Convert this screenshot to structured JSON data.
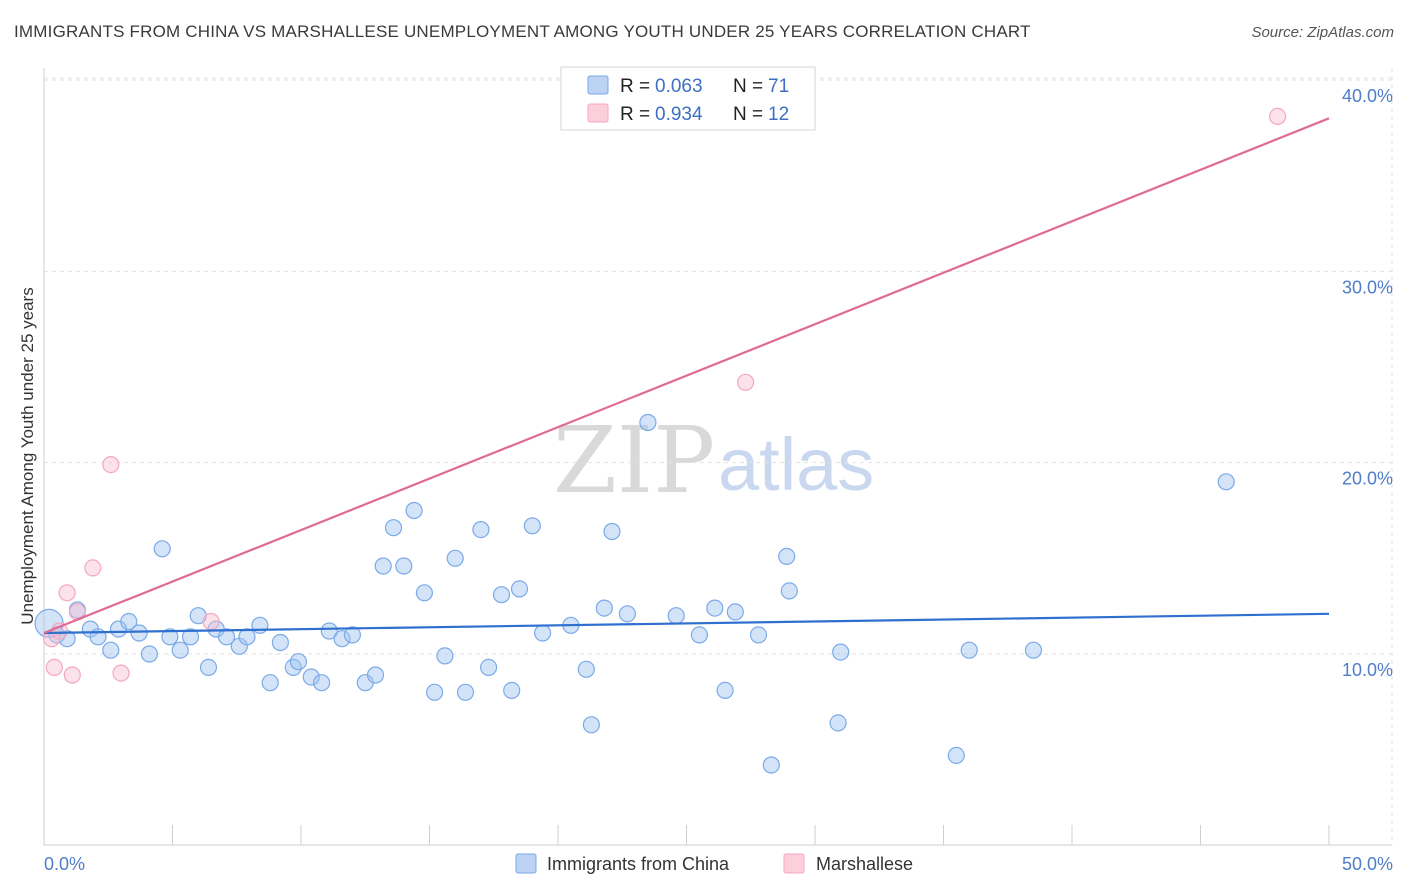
{
  "header": {
    "title": "IMMIGRANTS FROM CHINA VS MARSHALLESE UNEMPLOYMENT AMONG YOUTH UNDER 25 YEARS CORRELATION CHART",
    "source": "Source: ZipAtlas.com"
  },
  "watermark": {
    "zip": "ZIP",
    "atlas": "atlas"
  },
  "legend_top": {
    "rows": [
      {
        "r_label": "R = ",
        "r_value": "0.063",
        "n_label": "N = ",
        "n_value": "71"
      },
      {
        "r_label": "R = ",
        "r_value": "0.934",
        "n_label": "N = ",
        "n_value": "12"
      }
    ]
  },
  "chart_data": {
    "type": "scatter",
    "title": "IMMIGRANTS FROM CHINA VS MARSHALLESE UNEMPLOYMENT AMONG YOUTH UNDER 25 YEARS CORRELATION CHART",
    "xlabel": "",
    "ylabel": "Unemployment Among Youth under 25 years",
    "xlim": [
      0,
      50
    ],
    "ylim": [
      2,
      42
    ],
    "x_tick_labels": [
      "0.0%",
      "50.0%"
    ],
    "y_ticks": [
      10,
      20,
      30,
      40
    ],
    "y_tick_labels": [
      "10.0%",
      "20.0%",
      "30.0%",
      "40.0%"
    ],
    "grid": true,
    "legend_placement": "top-center and bottom",
    "colors": {
      "china": "#7aaae8",
      "china_line": "#2f6fd0",
      "marshallese": "#f4a7bd",
      "marshallese_line": "#e06a93",
      "tick_text": "#4f7dc9"
    },
    "series": [
      {
        "name": "Immigrants from China",
        "color": "#7aaae8",
        "trend": {
          "x": [
            0,
            50
          ],
          "y": [
            11.1,
            12.1
          ]
        },
        "points": [
          [
            0.2,
            11.6
          ],
          [
            0.5,
            11.0
          ],
          [
            0.9,
            10.8
          ],
          [
            1.3,
            12.3
          ],
          [
            1.8,
            11.3
          ],
          [
            2.1,
            10.9
          ],
          [
            2.6,
            10.2
          ],
          [
            2.9,
            11.3
          ],
          [
            3.3,
            11.7
          ],
          [
            3.7,
            11.1
          ],
          [
            4.1,
            10.0
          ],
          [
            4.6,
            15.5
          ],
          [
            4.9,
            10.9
          ],
          [
            5.3,
            10.2
          ],
          [
            5.7,
            10.9
          ],
          [
            6.0,
            12.0
          ],
          [
            6.4,
            9.3
          ],
          [
            6.7,
            11.3
          ],
          [
            7.1,
            10.9
          ],
          [
            7.6,
            10.4
          ],
          [
            7.9,
            10.9
          ],
          [
            8.4,
            11.5
          ],
          [
            8.8,
            8.5
          ],
          [
            9.2,
            10.6
          ],
          [
            9.7,
            9.3
          ],
          [
            9.9,
            9.6
          ],
          [
            10.4,
            8.8
          ],
          [
            10.8,
            8.5
          ],
          [
            11.1,
            11.2
          ],
          [
            11.6,
            10.8
          ],
          [
            12.0,
            11.0
          ],
          [
            12.5,
            8.5
          ],
          [
            12.9,
            8.9
          ],
          [
            13.2,
            14.6
          ],
          [
            13.6,
            16.6
          ],
          [
            14.0,
            14.6
          ],
          [
            14.4,
            17.5
          ],
          [
            14.8,
            13.2
          ],
          [
            15.2,
            8.0
          ],
          [
            15.6,
            9.9
          ],
          [
            16.0,
            15.0
          ],
          [
            16.4,
            8.0
          ],
          [
            17.0,
            16.5
          ],
          [
            17.3,
            9.3
          ],
          [
            17.8,
            13.1
          ],
          [
            18.2,
            8.1
          ],
          [
            18.5,
            13.4
          ],
          [
            19.0,
            16.7
          ],
          [
            19.4,
            11.1
          ],
          [
            20.5,
            11.5
          ],
          [
            21.1,
            9.2
          ],
          [
            21.3,
            6.3
          ],
          [
            21.8,
            12.4
          ],
          [
            22.1,
            16.4
          ],
          [
            22.7,
            12.1
          ],
          [
            23.5,
            22.1
          ],
          [
            24.6,
            12.0
          ],
          [
            25.5,
            11.0
          ],
          [
            26.1,
            12.4
          ],
          [
            26.5,
            8.1
          ],
          [
            26.9,
            12.2
          ],
          [
            27.8,
            11.0
          ],
          [
            28.3,
            4.2
          ],
          [
            28.9,
            15.1
          ],
          [
            29.0,
            13.3
          ],
          [
            30.9,
            6.4
          ],
          [
            31.0,
            10.1
          ],
          [
            35.5,
            4.7
          ],
          [
            36.0,
            10.2
          ],
          [
            38.5,
            10.2
          ],
          [
            46.0,
            19.0
          ]
        ]
      },
      {
        "name": "Marshallese",
        "color": "#f4a7bd",
        "trend": {
          "x": [
            0,
            50
          ],
          "y": [
            11.1,
            38.0
          ]
        },
        "points": [
          [
            0.3,
            10.8
          ],
          [
            0.4,
            9.3
          ],
          [
            0.6,
            11.2
          ],
          [
            0.9,
            13.2
          ],
          [
            1.1,
            8.9
          ],
          [
            1.3,
            12.2
          ],
          [
            1.9,
            14.5
          ],
          [
            2.6,
            19.9
          ],
          [
            3.0,
            9.0
          ],
          [
            6.5,
            11.7
          ],
          [
            27.3,
            24.2
          ],
          [
            48.0,
            38.1
          ]
        ]
      }
    ]
  },
  "legend_bottom": {
    "items": [
      {
        "label": "Immigrants from China"
      },
      {
        "label": "Marshallese"
      }
    ]
  }
}
